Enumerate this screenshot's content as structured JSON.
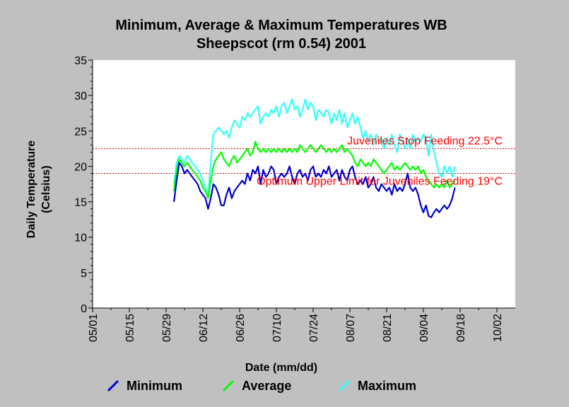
{
  "chart_data": {
    "type": "line",
    "title_line1": "Minimum, Average & Maximum Temperatures WB",
    "title_line2": "Sheepscot (rm 0.54) 2001",
    "xlabel": "Date (mm/dd)",
    "ylabel_line1": "Daily Temperature",
    "ylabel_line2": "(Celsius)",
    "x_tick_labels": [
      "05/01",
      "05/15",
      "05/29",
      "06/12",
      "06/26",
      "07/10",
      "07/24",
      "08/07",
      "08/21",
      "09/04",
      "09/18",
      "10/02"
    ],
    "x_tick_days": [
      0,
      14,
      28,
      42,
      56,
      70,
      84,
      98,
      112,
      126,
      140,
      154
    ],
    "x_day_note": "x values are day offsets from 05/01/2001",
    "xlim_days": [
      0,
      161
    ],
    "ylim": [
      0,
      35
    ],
    "y_ticks": [
      0,
      5,
      10,
      15,
      20,
      25,
      30,
      35
    ],
    "grid": false,
    "legend_placement": "bottom",
    "reference_lines": [
      {
        "label": "Juveniles Stop Feeding 22.5°C",
        "value": 22.5,
        "color": "#cc0000"
      },
      {
        "label": "Optimum Upper Limit for Juveniles Feeding 19°C",
        "value": 19,
        "color": "#cc0000"
      }
    ],
    "series": [
      {
        "name": "Maximum",
        "color": "#33ffff",
        "x": [
          31,
          32,
          33,
          34,
          35,
          36,
          37,
          38,
          39,
          40,
          41,
          42,
          43,
          44,
          45,
          46,
          47,
          48,
          49,
          50,
          51,
          52,
          53,
          54,
          55,
          56,
          57,
          58,
          59,
          60,
          61,
          62,
          63,
          64,
          65,
          66,
          67,
          68,
          69,
          70,
          71,
          72,
          73,
          74,
          75,
          76,
          77,
          78,
          79,
          80,
          81,
          82,
          83,
          84,
          85,
          86,
          87,
          88,
          89,
          90,
          91,
          92,
          93,
          94,
          95,
          96,
          97,
          98,
          99,
          100,
          101,
          102,
          103,
          104,
          105,
          106,
          107,
          108,
          109,
          110,
          111,
          112,
          113,
          114,
          115,
          116,
          117,
          118,
          119,
          120,
          121,
          122,
          123,
          124,
          125,
          126,
          127,
          128,
          129,
          130,
          131,
          132,
          133,
          134,
          135,
          136,
          137,
          138
        ],
        "values": [
          17.5,
          20.5,
          21.5,
          21.0,
          20.5,
          21.5,
          21.0,
          20.5,
          20.0,
          19.5,
          19.0,
          18.0,
          17.0,
          16.0,
          20.5,
          24.5,
          25.0,
          25.5,
          25.0,
          24.5,
          25.0,
          24.0,
          25.5,
          26.5,
          26.0,
          25.5,
          27.0,
          26.5,
          27.5,
          27.0,
          27.5,
          28.0,
          28.5,
          26.0,
          27.0,
          27.5,
          27.0,
          28.0,
          27.5,
          28.5,
          27.0,
          28.5,
          29.0,
          27.5,
          28.5,
          29.5,
          28.0,
          28.5,
          27.0,
          28.0,
          29.5,
          28.0,
          29.0,
          28.5,
          26.5,
          28.0,
          27.5,
          27.0,
          28.0,
          27.5,
          26.0,
          27.5,
          26.5,
          28.0,
          26.0,
          27.5,
          25.5,
          26.5,
          27.5,
          26.0,
          27.0,
          25.5,
          24.0,
          25.0,
          23.5,
          24.5,
          23.0,
          24.5,
          23.5,
          24.0,
          22.5,
          24.0,
          23.0,
          24.5,
          23.0,
          22.0,
          24.5,
          23.5,
          22.5,
          24.0,
          22.5,
          24.5,
          23.5,
          24.0,
          23.5,
          24.5,
          24.0,
          21.5,
          24.5,
          22.0,
          20.5,
          19.0,
          18.5,
          20.0,
          19.0,
          20.0,
          18.5,
          20.0
        ]
      },
      {
        "name": "Average",
        "color": "#00ff00",
        "x": [
          31,
          32,
          33,
          34,
          35,
          36,
          37,
          38,
          39,
          40,
          41,
          42,
          43,
          44,
          45,
          46,
          47,
          48,
          49,
          50,
          51,
          52,
          53,
          54,
          55,
          56,
          57,
          58,
          59,
          60,
          61,
          62,
          63,
          64,
          65,
          66,
          67,
          68,
          69,
          70,
          71,
          72,
          73,
          74,
          75,
          76,
          77,
          78,
          79,
          80,
          81,
          82,
          83,
          84,
          85,
          86,
          87,
          88,
          89,
          90,
          91,
          92,
          93,
          94,
          95,
          96,
          97,
          98,
          99,
          100,
          101,
          102,
          103,
          104,
          105,
          106,
          107,
          108,
          109,
          110,
          111,
          112,
          113,
          114,
          115,
          116,
          117,
          118,
          119,
          120,
          121,
          122,
          123,
          124,
          125,
          126,
          127,
          128,
          129,
          130,
          131,
          132,
          133,
          134,
          135,
          136,
          137,
          138
        ],
        "values": [
          16.5,
          19.5,
          21.0,
          20.5,
          20.0,
          20.5,
          20.0,
          19.5,
          19.0,
          18.5,
          18.0,
          17.0,
          16.5,
          15.5,
          18.0,
          20.0,
          21.0,
          21.5,
          22.0,
          21.0,
          20.5,
          20.0,
          21.0,
          21.5,
          20.5,
          21.0,
          21.5,
          22.0,
          22.5,
          21.5,
          22.0,
          23.5,
          22.5,
          22.0,
          22.5,
          22.0,
          22.5,
          22.0,
          22.5,
          22.0,
          22.5,
          22.0,
          22.5,
          22.0,
          22.5,
          22.0,
          22.5,
          22.0,
          23.0,
          22.5,
          22.0,
          22.5,
          23.0,
          22.5,
          22.0,
          22.5,
          23.0,
          22.5,
          22.0,
          22.5,
          22.0,
          22.5,
          22.0,
          22.5,
          23.0,
          22.0,
          22.5,
          22.0,
          21.5,
          20.5,
          20.0,
          21.0,
          20.5,
          20.0,
          20.5,
          20.0,
          21.0,
          20.5,
          20.0,
          19.5,
          19.0,
          19.5,
          20.0,
          20.5,
          19.5,
          20.0,
          19.5,
          20.0,
          20.5,
          20.0,
          19.5,
          20.0,
          19.5,
          20.0,
          19.0,
          19.5,
          18.5,
          18.0,
          17.5,
          17.0,
          17.5,
          17.0,
          17.5,
          17.0,
          18.0,
          17.0,
          17.5,
          18.0
        ]
      },
      {
        "name": "Minimum",
        "color": "#0000cc",
        "x": [
          31,
          32,
          33,
          34,
          35,
          36,
          37,
          38,
          39,
          40,
          41,
          42,
          43,
          44,
          45,
          46,
          47,
          48,
          49,
          50,
          51,
          52,
          53,
          54,
          55,
          56,
          57,
          58,
          59,
          60,
          61,
          62,
          63,
          64,
          65,
          66,
          67,
          68,
          69,
          70,
          71,
          72,
          73,
          74,
          75,
          76,
          77,
          78,
          79,
          80,
          81,
          82,
          83,
          84,
          85,
          86,
          87,
          88,
          89,
          90,
          91,
          92,
          93,
          94,
          95,
          96,
          97,
          98,
          99,
          100,
          101,
          102,
          103,
          104,
          105,
          106,
          107,
          108,
          109,
          110,
          111,
          112,
          113,
          114,
          115,
          116,
          117,
          118,
          119,
          120,
          121,
          122,
          123,
          124,
          125,
          126,
          127,
          128,
          129,
          130,
          131,
          132,
          133,
          134,
          135,
          136,
          137,
          138
        ],
        "values": [
          15.0,
          18.0,
          20.5,
          20.0,
          19.0,
          19.5,
          19.0,
          18.5,
          18.0,
          17.5,
          16.5,
          16.0,
          15.5,
          14.0,
          15.5,
          17.5,
          17.0,
          16.0,
          14.5,
          14.5,
          16.0,
          17.0,
          15.5,
          16.5,
          17.0,
          17.5,
          18.0,
          17.5,
          19.0,
          18.0,
          19.5,
          19.0,
          20.0,
          17.5,
          19.5,
          18.5,
          19.0,
          20.0,
          19.5,
          17.5,
          18.5,
          19.0,
          18.5,
          19.0,
          20.0,
          18.5,
          17.5,
          19.0,
          19.5,
          18.5,
          19.0,
          18.0,
          19.5,
          20.0,
          18.5,
          19.0,
          18.5,
          19.5,
          19.0,
          20.0,
          18.5,
          19.0,
          19.5,
          18.0,
          19.5,
          18.5,
          18.0,
          19.5,
          20.0,
          18.5,
          17.5,
          18.0,
          17.5,
          18.5,
          17.0,
          17.5,
          18.5,
          17.0,
          16.5,
          17.5,
          17.0,
          16.5,
          17.0,
          16.0,
          17.5,
          16.5,
          17.0,
          16.5,
          17.5,
          19.0,
          17.0,
          16.5,
          17.0,
          16.0,
          14.5,
          13.5,
          14.5,
          13.0,
          12.8,
          13.5,
          14.0,
          13.5,
          14.0,
          14.5,
          14.0,
          14.5,
          15.5,
          17.0
        ]
      }
    ]
  }
}
